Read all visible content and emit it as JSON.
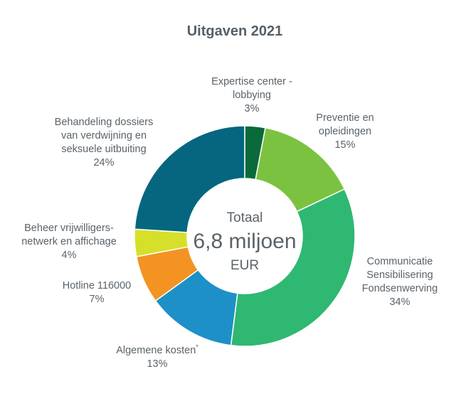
{
  "chart_data": {
    "type": "pie",
    "title": "Uitgaven 2021",
    "center": {
      "line1": "Totaal",
      "line2": "6,8 miljoen",
      "line3": "EUR"
    },
    "slices": [
      {
        "label_lines": [
          "Expertise center -",
          "lobbying"
        ],
        "value": 3,
        "value_label": "3%",
        "color": "#0b6a3a"
      },
      {
        "label_lines": [
          "Preventie en",
          "opleidingen"
        ],
        "value": 15,
        "value_label": "15%",
        "color": "#7cc241"
      },
      {
        "label_lines": [
          "Communicatie",
          "Sensibilisering",
          "Fondsenwerving"
        ],
        "value": 34,
        "value_label": "34%",
        "color": "#2eb872"
      },
      {
        "label_lines": [
          "Algemene kosten"
        ],
        "superscript": "*",
        "value": 13,
        "value_label": "13%",
        "color": "#1e90c8"
      },
      {
        "label_lines": [
          "Hotline 116000"
        ],
        "value": 7,
        "value_label": "7%",
        "color": "#f39322"
      },
      {
        "label_lines": [
          "Beheer vrijwilligers-",
          "netwerk en affichage"
        ],
        "value": 4,
        "value_label": "4%",
        "color": "#d6e02a"
      },
      {
        "label_lines": [
          "Behandeling dossiers",
          "van verdwijning en",
          "seksuele uitbuiting"
        ],
        "value": 24,
        "value_label": "24%",
        "color": "#06667f"
      }
    ]
  }
}
